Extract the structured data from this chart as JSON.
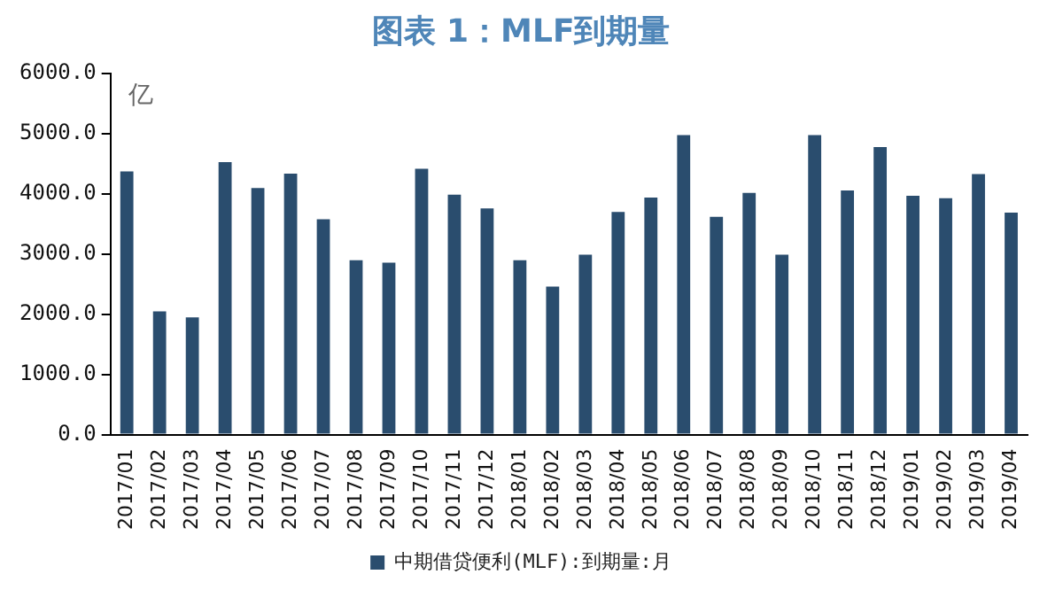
{
  "chart_data": {
    "type": "bar",
    "title": "图表 1：MLF到期量",
    "ylabel": "亿",
    "categories": [
      "2017/01",
      "2017/02",
      "2017/03",
      "2017/04",
      "2017/05",
      "2017/06",
      "2017/07",
      "2017/08",
      "2017/09",
      "2017/10",
      "2017/11",
      "2017/12",
      "2018/01",
      "2018/02",
      "2018/03",
      "2018/04",
      "2018/05",
      "2018/06",
      "2018/07",
      "2018/08",
      "2018/09",
      "2018/10",
      "2018/11",
      "2018/12",
      "2019/01",
      "2019/02",
      "2019/03",
      "2019/04"
    ],
    "series": [
      {
        "name": "中期借贷便利(MLF):到期量:月",
        "color": "#2a4d6e",
        "values": [
          4375,
          2050,
          1950,
          4530,
          4100,
          4340,
          3580,
          2900,
          2860,
          4420,
          3990,
          3760,
          2900,
          2460,
          2990,
          3700,
          3940,
          4980,
          3620,
          4020,
          2990,
          4980,
          4060,
          4780,
          3970,
          3930,
          4330,
          3690
        ]
      }
    ],
    "ylim": [
      0,
      6000
    ],
    "yticks": [
      {
        "value": 0,
        "label": "0.0"
      },
      {
        "value": 1000,
        "label": "1000.0"
      },
      {
        "value": 2000,
        "label": "2000.0"
      },
      {
        "value": 3000,
        "label": "3000.0"
      },
      {
        "value": 4000,
        "label": "4000.0"
      },
      {
        "value": 5000,
        "label": "5000.0"
      },
      {
        "value": 6000,
        "label": "6000.0"
      }
    ],
    "grid": false,
    "legend": "bottom"
  }
}
